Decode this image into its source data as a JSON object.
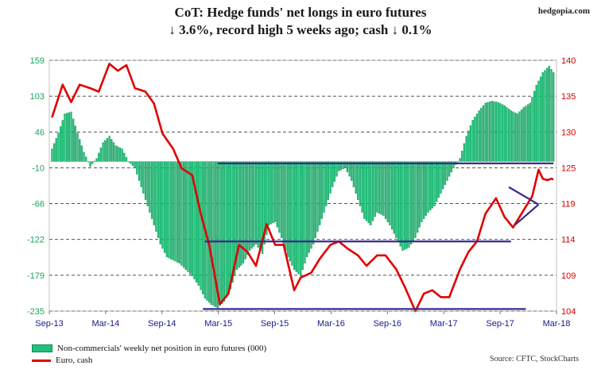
{
  "header": {
    "title_line1": "CoT: Hedge funds' net longs in euro futures",
    "title_line2": "↓ 3.6%, record high 5 weeks ago; cash ↓ 0.1%",
    "brand": "hedgopia.com"
  },
  "footer": {
    "source": "Source: CFTC, StockCharts"
  },
  "colors": {
    "bars": "#22c07a",
    "bars_edge": "#0f8a52",
    "euro_line": "#e00000",
    "channel": "#3a2a8a",
    "grid": "#3a3a3a",
    "left_axis_text": "#1aa55e",
    "right_axis_text": "#d40000"
  },
  "chart_data": {
    "type": "bar",
    "x_ticks": [
      "Sep-13",
      "Mar-14",
      "Sep-14",
      "Mar-15",
      "Sep-15",
      "Mar-16",
      "Sep-16",
      "Mar-17",
      "Sep-17",
      "Mar-18"
    ],
    "y_left_ticks": [
      "159",
      "103",
      "46",
      "-10",
      "-66",
      "-122",
      "-179",
      "-235"
    ],
    "y_right_ticks": [
      "140",
      "135",
      "130",
      "125",
      "119",
      "114",
      "109",
      "104"
    ],
    "ylim_left": [
      -235,
      159
    ],
    "ylim_right": [
      104,
      140
    ],
    "grid": "dashed horizontal",
    "legend_position": "bottom-left",
    "series": [
      {
        "name": "Non-commercials' weekly net position in euro futures (000)",
        "axis": "left",
        "kind": "bar",
        "points": [
          [
            "2013-09-06",
            20
          ],
          [
            "2013-09-27",
            45
          ],
          [
            "2013-10-18",
            75
          ],
          [
            "2013-11-08",
            78
          ],
          [
            "2013-11-29",
            45
          ],
          [
            "2013-12-20",
            15
          ],
          [
            "2014-01-10",
            -8
          ],
          [
            "2014-01-31",
            5
          ],
          [
            "2014-02-21",
            30
          ],
          [
            "2014-03-14",
            40
          ],
          [
            "2014-04-04",
            25
          ],
          [
            "2014-04-25",
            20
          ],
          [
            "2014-05-16",
            0
          ],
          [
            "2014-06-06",
            -10
          ],
          [
            "2014-06-27",
            -40
          ],
          [
            "2014-07-18",
            -70
          ],
          [
            "2014-08-08",
            -100
          ],
          [
            "2014-08-29",
            -130
          ],
          [
            "2014-09-19",
            -150
          ],
          [
            "2014-10-10",
            -155
          ],
          [
            "2014-10-31",
            -160
          ],
          [
            "2014-11-21",
            -170
          ],
          [
            "2014-12-12",
            -180
          ],
          [
            "2015-01-02",
            -195
          ],
          [
            "2015-01-23",
            -215
          ],
          [
            "2015-02-13",
            -225
          ],
          [
            "2015-03-06",
            -230
          ],
          [
            "2015-03-27",
            -220
          ],
          [
            "2015-04-17",
            -200
          ],
          [
            "2015-05-08",
            -170
          ],
          [
            "2015-05-29",
            -160
          ],
          [
            "2015-06-19",
            -140
          ],
          [
            "2015-07-10",
            -130
          ],
          [
            "2015-07-31",
            -145
          ],
          [
            "2015-08-21",
            -100
          ],
          [
            "2015-09-11",
            -95
          ],
          [
            "2015-10-02",
            -120
          ],
          [
            "2015-10-23",
            -150
          ],
          [
            "2015-11-13",
            -170
          ],
          [
            "2015-12-04",
            -180
          ],
          [
            "2015-12-25",
            -150
          ],
          [
            "2016-01-15",
            -130
          ],
          [
            "2016-02-05",
            -100
          ],
          [
            "2016-02-26",
            -70
          ],
          [
            "2016-03-18",
            -40
          ],
          [
            "2016-04-08",
            -15
          ],
          [
            "2016-04-29",
            -10
          ],
          [
            "2016-05-20",
            -30
          ],
          [
            "2016-06-10",
            -60
          ],
          [
            "2016-07-01",
            -90
          ],
          [
            "2016-07-22",
            -100
          ],
          [
            "2016-08-12",
            -80
          ],
          [
            "2016-09-02",
            -85
          ],
          [
            "2016-09-23",
            -100
          ],
          [
            "2016-10-14",
            -120
          ],
          [
            "2016-11-04",
            -140
          ],
          [
            "2016-11-25",
            -135
          ],
          [
            "2016-12-16",
            -120
          ],
          [
            "2017-01-06",
            -95
          ],
          [
            "2017-01-27",
            -80
          ],
          [
            "2017-02-17",
            -70
          ],
          [
            "2017-03-10",
            -50
          ],
          [
            "2017-03-31",
            -30
          ],
          [
            "2017-04-21",
            -10
          ],
          [
            "2017-05-12",
            5
          ],
          [
            "2017-06-02",
            40
          ],
          [
            "2017-06-23",
            65
          ],
          [
            "2017-07-14",
            80
          ],
          [
            "2017-08-04",
            92
          ],
          [
            "2017-08-25",
            95
          ],
          [
            "2017-09-15",
            93
          ],
          [
            "2017-10-06",
            88
          ],
          [
            "2017-10-27",
            80
          ],
          [
            "2017-11-17",
            75
          ],
          [
            "2017-12-08",
            85
          ],
          [
            "2017-12-29",
            92
          ],
          [
            "2018-01-19",
            120
          ],
          [
            "2018-02-09",
            140
          ],
          [
            "2018-03-02",
            150
          ],
          [
            "2018-03-16",
            140
          ]
        ]
      },
      {
        "name": "Euro, cash",
        "axis": "right",
        "kind": "line",
        "points": [
          [
            "2013-09-06",
            131.8
          ],
          [
            "2013-10-11",
            136.5
          ],
          [
            "2013-11-08",
            134
          ],
          [
            "2013-12-06",
            136.5
          ],
          [
            "2014-01-10",
            136
          ],
          [
            "2014-02-07",
            135.5
          ],
          [
            "2014-03-14",
            139.5
          ],
          [
            "2014-04-11",
            138.5
          ],
          [
            "2014-05-09",
            139.3
          ],
          [
            "2014-06-06",
            136
          ],
          [
            "2014-07-11",
            135.5
          ],
          [
            "2014-08-08",
            133.8
          ],
          [
            "2014-09-05",
            129.5
          ],
          [
            "2014-10-10",
            127.3
          ],
          [
            "2014-11-07",
            124.5
          ],
          [
            "2014-12-12",
            123.5
          ],
          [
            "2015-01-09",
            118
          ],
          [
            "2015-02-06",
            113.5
          ],
          [
            "2015-03-13",
            105
          ],
          [
            "2015-04-10",
            106.5
          ],
          [
            "2015-05-15",
            113.5
          ],
          [
            "2015-06-12",
            112.5
          ],
          [
            "2015-07-10",
            110.5
          ],
          [
            "2015-08-14",
            116.5
          ],
          [
            "2015-09-11",
            113.5
          ],
          [
            "2015-10-09",
            113.5
          ],
          [
            "2015-11-13",
            107
          ],
          [
            "2015-12-04",
            108.8
          ],
          [
            "2016-01-08",
            109.5
          ],
          [
            "2016-02-05",
            111.5
          ],
          [
            "2016-03-11",
            113.5
          ],
          [
            "2016-04-08",
            114
          ],
          [
            "2016-05-06",
            113
          ],
          [
            "2016-06-10",
            112
          ],
          [
            "2016-07-08",
            110.5
          ],
          [
            "2016-08-12",
            112
          ],
          [
            "2016-09-09",
            112
          ],
          [
            "2016-10-14",
            110
          ],
          [
            "2016-11-11",
            107.5
          ],
          [
            "2016-12-16",
            104
          ],
          [
            "2017-01-13",
            106.5
          ],
          [
            "2017-02-10",
            107
          ],
          [
            "2017-03-10",
            106
          ],
          [
            "2017-04-07",
            106
          ],
          [
            "2017-05-12",
            110
          ],
          [
            "2017-06-09",
            112.5
          ],
          [
            "2017-07-07",
            114
          ],
          [
            "2017-08-04",
            118
          ],
          [
            "2017-09-08",
            120.2
          ],
          [
            "2017-10-06",
            117.5
          ],
          [
            "2017-11-03",
            116
          ],
          [
            "2017-12-08",
            118.5
          ],
          [
            "2018-01-05",
            120.5
          ],
          [
            "2018-01-26",
            124.3
          ],
          [
            "2018-02-09",
            123
          ],
          [
            "2018-02-23",
            122.8
          ],
          [
            "2018-03-09",
            123
          ],
          [
            "2018-03-16",
            122.9
          ]
        ]
      }
    ],
    "annotation_lines": [
      {
        "from": [
          "2015-03-06",
          125.2
        ],
        "to": [
          "2018-03-16",
          125.2
        ]
      },
      {
        "from": [
          "2015-01-23",
          114.0
        ],
        "to": [
          "2017-10-27",
          114.0
        ]
      },
      {
        "from": [
          "2015-01-16",
          104.3
        ],
        "to": [
          "2017-12-15",
          104.3
        ]
      },
      {
        "from": [
          "2017-10-20",
          121.8
        ],
        "to": [
          "2018-01-26",
          119.3
        ]
      },
      {
        "from": [
          "2017-11-10",
          116.4
        ],
        "to": [
          "2018-01-26",
          119.3
        ]
      }
    ]
  },
  "legend": {
    "bars_label": "Non-commercials' weekly net position in euro futures (000)",
    "line_label": "Euro, cash"
  }
}
